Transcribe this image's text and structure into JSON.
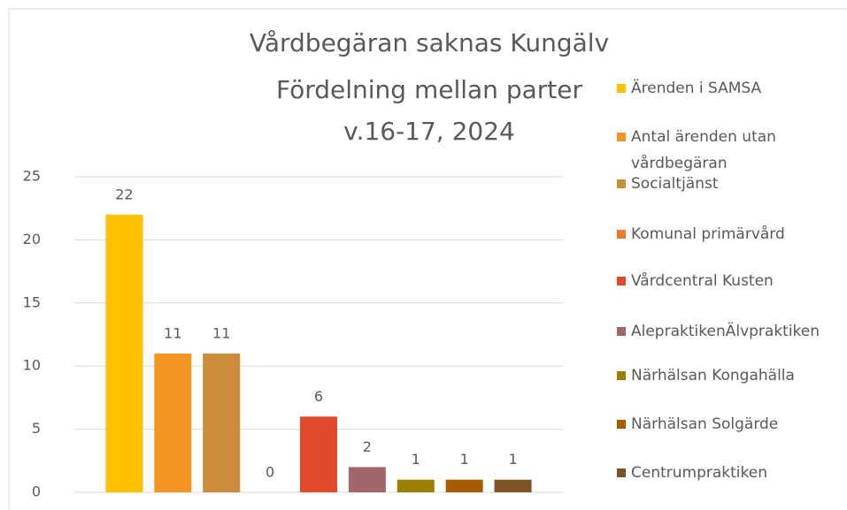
{
  "chart_data": {
    "type": "bar",
    "title": [
      "Vårdbegäran saknas Kungälv",
      "Fördelning mellan parter",
      "v.16-17, 2024"
    ],
    "series": [
      {
        "name": "Ärenden i SAMSA",
        "color": "#FFC000",
        "values": [
          22
        ]
      },
      {
        "name": "Antal ärenden utan vårdbegäran",
        "color": "#F39423",
        "values": [
          11
        ]
      },
      {
        "name": "Socialtjänst",
        "color": "#CC8C3C",
        "values": [
          11
        ]
      },
      {
        "name": "Komunal primärvård",
        "color": "#EE7A2C",
        "values": [
          0
        ]
      },
      {
        "name": "Vårdcentral Kusten",
        "color": "#E2492A",
        "values": [
          6
        ]
      },
      {
        "name": "AlepraktikenÄlvpraktiken",
        "color": "#A0666A",
        "values": [
          2
        ]
      },
      {
        "name": "Närhälsan Kongahälla",
        "color": "#9C7E00",
        "values": [
          1
        ]
      },
      {
        "name": "Närhälsan Solgärde",
        "color": "#A85A00",
        "values": [
          1
        ]
      },
      {
        "name": "Centrumpraktiken",
        "color": "#7D5325",
        "values": [
          1
        ]
      }
    ],
    "ylim": [
      0,
      25
    ],
    "yticks": [
      0,
      5,
      10,
      15,
      20,
      25
    ],
    "grid": true,
    "legend": "right"
  }
}
